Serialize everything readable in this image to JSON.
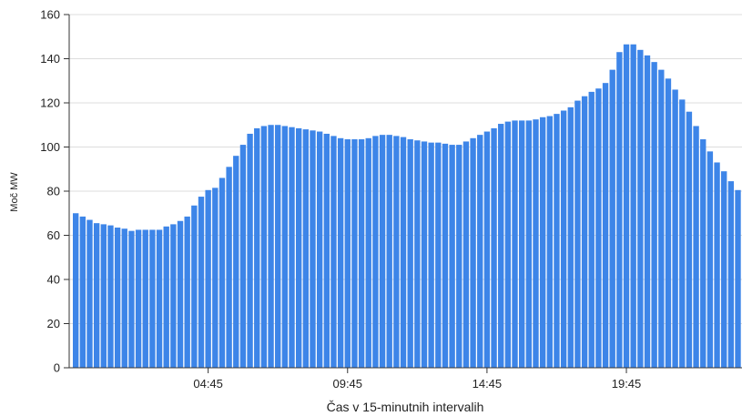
{
  "chart_data": {
    "type": "bar",
    "title": "",
    "xlabel": "Čas v 15-minutnih intervalih",
    "ylabel": "Moč MW",
    "ylim": [
      0,
      160
    ],
    "yticks": [
      "0",
      "20",
      "40",
      "60",
      "80",
      "100",
      "120",
      "140",
      "160"
    ],
    "xtick_labels": [
      "04:45",
      "09:45",
      "14:45",
      "19:45"
    ],
    "grid": "horizontal",
    "bar_color": "#3d85e8",
    "categories": [
      "00:00",
      "00:15",
      "00:30",
      "00:45",
      "01:00",
      "01:15",
      "01:30",
      "01:45",
      "02:00",
      "02:15",
      "02:30",
      "02:45",
      "03:00",
      "03:15",
      "03:30",
      "03:45",
      "04:00",
      "04:15",
      "04:30",
      "04:45",
      "05:00",
      "05:15",
      "05:30",
      "05:45",
      "06:00",
      "06:15",
      "06:30",
      "06:45",
      "07:00",
      "07:15",
      "07:30",
      "07:45",
      "08:00",
      "08:15",
      "08:30",
      "08:45",
      "09:00",
      "09:15",
      "09:30",
      "09:45",
      "10:00",
      "10:15",
      "10:30",
      "10:45",
      "11:00",
      "11:15",
      "11:30",
      "11:45",
      "12:00",
      "12:15",
      "12:30",
      "12:45",
      "13:00",
      "13:15",
      "13:30",
      "13:45",
      "14:00",
      "14:15",
      "14:30",
      "14:45",
      "15:00",
      "15:15",
      "15:30",
      "15:45",
      "16:00",
      "16:15",
      "16:30",
      "16:45",
      "17:00",
      "17:15",
      "17:30",
      "17:45",
      "18:00",
      "18:15",
      "18:30",
      "18:45",
      "19:00",
      "19:15",
      "19:30",
      "19:45",
      "20:00",
      "20:15",
      "20:30",
      "20:45",
      "21:00",
      "21:15",
      "21:30",
      "21:45",
      "22:00",
      "22:15",
      "22:30",
      "22:45",
      "23:00",
      "23:15",
      "23:30",
      "23:45"
    ],
    "values": [
      70,
      68.5,
      67,
      65.5,
      65,
      64.5,
      63.5,
      63,
      62,
      62.5,
      62.5,
      62.5,
      62.5,
      64,
      65,
      66.5,
      68.5,
      73.5,
      77.5,
      80.5,
      81.5,
      86,
      91,
      96,
      101,
      106,
      108.5,
      109.5,
      110,
      110,
      109.5,
      109,
      108.5,
      108,
      107.5,
      107,
      106,
      105,
      104,
      103.5,
      103.5,
      103.5,
      104,
      105,
      105.5,
      105.5,
      105,
      104.5,
      103.5,
      103,
      102.5,
      102,
      102,
      101.5,
      101,
      101,
      102.5,
      104,
      105.5,
      107,
      108.5,
      110.5,
      111.5,
      112,
      112,
      112,
      112.5,
      113.5,
      114,
      115,
      116.5,
      118,
      121,
      123,
      125,
      126.5,
      129,
      135,
      143,
      146.5,
      146.5,
      144,
      141.5,
      138.5,
      135,
      131,
      126,
      121.5,
      116,
      109.5,
      103.5,
      98,
      93,
      89,
      84.5,
      80.5
    ]
  }
}
